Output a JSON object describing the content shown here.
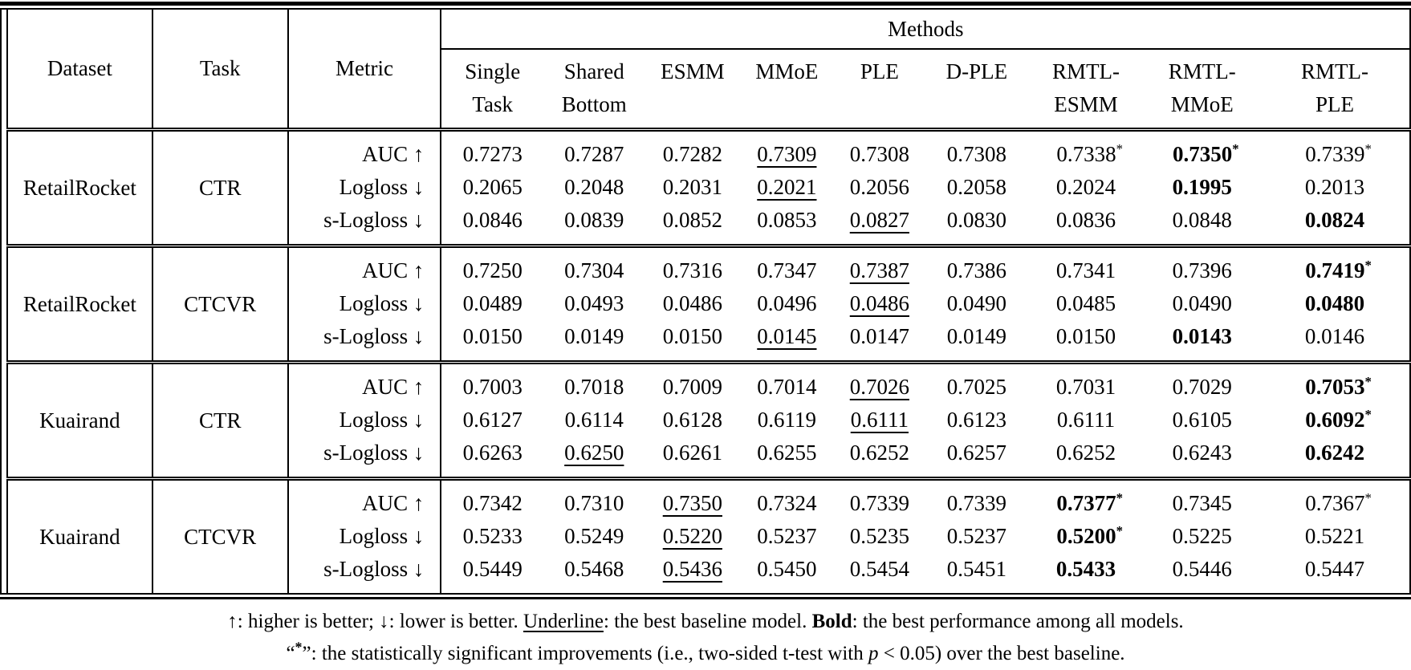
{
  "table": {
    "header": {
      "dataset": "Dataset",
      "task": "Task",
      "metric": "Metric",
      "methods_label": "Methods",
      "methods": [
        [
          "Single",
          "Task"
        ],
        [
          "Shared",
          "Bottom"
        ],
        [
          "ESMM"
        ],
        [
          "MMoE"
        ],
        [
          "PLE"
        ],
        [
          "D-PLE"
        ],
        [
          "RMTL-",
          "ESMM"
        ],
        [
          "RMTL-",
          "MMoE"
        ],
        [
          "RMTL-",
          "PLE"
        ]
      ]
    },
    "legend": {
      "underline_means": "best baseline model",
      "bold_means": "best performance among all models",
      "star_means": "statistically significant improvement over best baseline"
    },
    "blocks": [
      {
        "dataset": "RetailRocket",
        "task": "CTR",
        "rows": [
          {
            "metric": "AUC ↑",
            "cells": [
              {
                "v": "0.7273"
              },
              {
                "v": "0.7287"
              },
              {
                "v": "0.7282"
              },
              {
                "v": "0.7309",
                "u": 1
              },
              {
                "v": "0.7308"
              },
              {
                "v": "0.7308"
              },
              {
                "v": "0.7338",
                "s": 1
              },
              {
                "v": "0.7350",
                "b": 1,
                "s": 1
              },
              {
                "v": "0.7339",
                "s": 1
              }
            ]
          },
          {
            "metric": "Logloss ↓",
            "cells": [
              {
                "v": "0.2065"
              },
              {
                "v": "0.2048"
              },
              {
                "v": "0.2031"
              },
              {
                "v": "0.2021",
                "u": 1
              },
              {
                "v": "0.2056"
              },
              {
                "v": "0.2058"
              },
              {
                "v": "0.2024"
              },
              {
                "v": "0.1995",
                "b": 1
              },
              {
                "v": "0.2013"
              }
            ]
          },
          {
            "metric": "s-Logloss ↓",
            "cells": [
              {
                "v": "0.0846"
              },
              {
                "v": "0.0839"
              },
              {
                "v": "0.0852"
              },
              {
                "v": "0.0853"
              },
              {
                "v": "0.0827",
                "u": 1
              },
              {
                "v": "0.0830"
              },
              {
                "v": "0.0836"
              },
              {
                "v": "0.0848"
              },
              {
                "v": "0.0824",
                "b": 1
              }
            ]
          }
        ]
      },
      {
        "dataset": "RetailRocket",
        "task": "CTCVR",
        "rows": [
          {
            "metric": "AUC ↑",
            "cells": [
              {
                "v": "0.7250"
              },
              {
                "v": "0.7304"
              },
              {
                "v": "0.7316"
              },
              {
                "v": "0.7347"
              },
              {
                "v": "0.7387",
                "u": 1
              },
              {
                "v": "0.7386"
              },
              {
                "v": "0.7341"
              },
              {
                "v": "0.7396"
              },
              {
                "v": "0.7419",
                "b": 1,
                "s": 1
              }
            ]
          },
          {
            "metric": "Logloss ↓",
            "cells": [
              {
                "v": "0.0489"
              },
              {
                "v": "0.0493"
              },
              {
                "v": "0.0486"
              },
              {
                "v": "0.0496"
              },
              {
                "v": "0.0486",
                "u": 1
              },
              {
                "v": "0.0490"
              },
              {
                "v": "0.0485"
              },
              {
                "v": "0.0490"
              },
              {
                "v": "0.0480",
                "b": 1
              }
            ]
          },
          {
            "metric": "s-Logloss ↓",
            "cells": [
              {
                "v": "0.0150"
              },
              {
                "v": "0.0149"
              },
              {
                "v": "0.0150"
              },
              {
                "v": "0.0145",
                "u": 1
              },
              {
                "v": "0.0147"
              },
              {
                "v": "0.0149"
              },
              {
                "v": "0.0150"
              },
              {
                "v": "0.0143",
                "b": 1
              },
              {
                "v": "0.0146"
              }
            ]
          }
        ]
      },
      {
        "dataset": "Kuairand",
        "task": "CTR",
        "rows": [
          {
            "metric": "AUC ↑",
            "cells": [
              {
                "v": "0.7003"
              },
              {
                "v": "0.7018"
              },
              {
                "v": "0.7009"
              },
              {
                "v": "0.7014"
              },
              {
                "v": "0.7026",
                "u": 1
              },
              {
                "v": "0.7025"
              },
              {
                "v": "0.7031"
              },
              {
                "v": "0.7029"
              },
              {
                "v": "0.7053",
                "b": 1,
                "s": 1
              }
            ]
          },
          {
            "metric": "Logloss ↓",
            "cells": [
              {
                "v": "0.6127"
              },
              {
                "v": "0.6114"
              },
              {
                "v": "0.6128"
              },
              {
                "v": "0.6119"
              },
              {
                "v": "0.6111",
                "u": 1
              },
              {
                "v": "0.6123"
              },
              {
                "v": "0.6111"
              },
              {
                "v": "0.6105"
              },
              {
                "v": "0.6092",
                "b": 1,
                "s": 1
              }
            ]
          },
          {
            "metric": "s-Logloss ↓",
            "cells": [
              {
                "v": "0.6263"
              },
              {
                "v": "0.6250",
                "u": 1
              },
              {
                "v": "0.6261"
              },
              {
                "v": "0.6255"
              },
              {
                "v": "0.6252"
              },
              {
                "v": "0.6257"
              },
              {
                "v": "0.6252"
              },
              {
                "v": "0.6243"
              },
              {
                "v": "0.6242",
                "b": 1
              }
            ]
          }
        ]
      },
      {
        "dataset": "Kuairand",
        "task": "CTCVR",
        "rows": [
          {
            "metric": "AUC ↑",
            "cells": [
              {
                "v": "0.7342"
              },
              {
                "v": "0.7310"
              },
              {
                "v": "0.7350",
                "u": 1
              },
              {
                "v": "0.7324"
              },
              {
                "v": "0.7339"
              },
              {
                "v": "0.7339"
              },
              {
                "v": "0.7377",
                "b": 1,
                "s": 1
              },
              {
                "v": "0.7345"
              },
              {
                "v": "0.7367",
                "s": 1
              }
            ]
          },
          {
            "metric": "Logloss ↓",
            "cells": [
              {
                "v": "0.5233"
              },
              {
                "v": "0.5249"
              },
              {
                "v": "0.5220",
                "u": 1
              },
              {
                "v": "0.5237"
              },
              {
                "v": "0.5235"
              },
              {
                "v": "0.5237"
              },
              {
                "v": "0.5200",
                "b": 1,
                "s": 1
              },
              {
                "v": "0.5225"
              },
              {
                "v": "0.5221"
              }
            ]
          },
          {
            "metric": "s-Logloss ↓",
            "cells": [
              {
                "v": "0.5449"
              },
              {
                "v": "0.5468"
              },
              {
                "v": "0.5436",
                "u": 1
              },
              {
                "v": "0.5450"
              },
              {
                "v": "0.5454"
              },
              {
                "v": "0.5451"
              },
              {
                "v": "0.5433",
                "b": 1
              },
              {
                "v": "0.5446"
              },
              {
                "v": "0.5447"
              }
            ]
          }
        ]
      }
    ]
  },
  "footnotes": [
    [
      {
        "t": "↑: higher is better; ↓: lower is better. "
      },
      {
        "t": "Underline",
        "style": "u"
      },
      {
        "t": ": the best baseline model. "
      },
      {
        "t": "Bold",
        "style": "b"
      },
      {
        "t": ": the best performance among all models."
      }
    ],
    [
      {
        "t": "“"
      },
      {
        "t": "*",
        "style": "star"
      },
      {
        "t": "”: the statistically significant improvements (i.e., two-sided t-test with "
      },
      {
        "t": "p",
        "style": "i"
      },
      {
        "t": " < 0.05) over the best baseline."
      }
    ]
  ]
}
